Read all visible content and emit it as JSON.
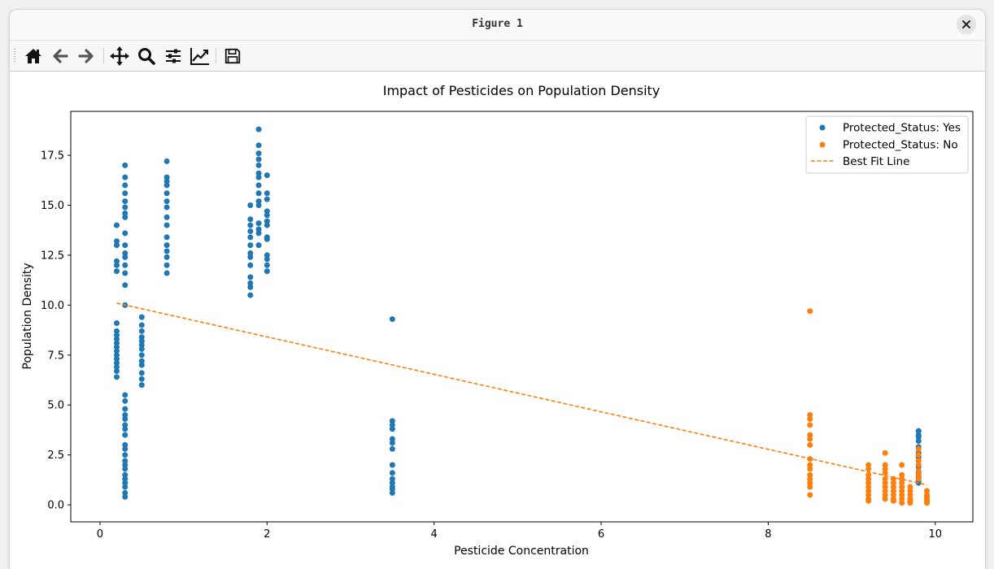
{
  "window": {
    "title": "Figure 1"
  },
  "toolbar": {
    "buttons": [
      {
        "name": "home-button",
        "icon": "home-icon"
      },
      {
        "name": "back-button",
        "icon": "arrow-left-icon"
      },
      {
        "name": "forward-button",
        "icon": "arrow-right-icon"
      },
      {
        "name": "pan-button",
        "icon": "move-icon"
      },
      {
        "name": "zoom-button",
        "icon": "magnifier-icon"
      },
      {
        "name": "configure-subplots-button",
        "icon": "sliders-icon"
      },
      {
        "name": "edit-axes-button",
        "icon": "line-chart-icon"
      },
      {
        "name": "save-button",
        "icon": "floppy-disk-icon"
      }
    ]
  },
  "chart_data": {
    "type": "scatter",
    "title": "Impact of Pesticides on Population Density",
    "xlabel": "Pesticide Concentration",
    "ylabel": "Population Density",
    "xlim": [
      -0.35,
      10.45
    ],
    "ylim": [
      -0.85,
      19.7
    ],
    "xticks": [
      0,
      2,
      4,
      6,
      8,
      10
    ],
    "xtick_labels": [
      "0",
      "2",
      "4",
      "6",
      "8",
      "10"
    ],
    "yticks": [
      0,
      2.5,
      5,
      7.5,
      10,
      12.5,
      15,
      17.5
    ],
    "ytick_labels": [
      "0.0",
      "2.5",
      "5.0",
      "7.5",
      "10.0",
      "12.5",
      "15.0",
      "17.5"
    ],
    "grid": false,
    "legend_position": "top-right",
    "series": [
      {
        "name": "Protected_Status: Yes",
        "kind": "scatter",
        "color": "#1f77b4",
        "points": [
          [
            0.2,
            14.0
          ],
          [
            0.2,
            13.2
          ],
          [
            0.2,
            13.0
          ],
          [
            0.2,
            12.2
          ],
          [
            0.2,
            12.0
          ],
          [
            0.2,
            11.7
          ],
          [
            0.2,
            9.1
          ],
          [
            0.2,
            8.7
          ],
          [
            0.2,
            8.5
          ],
          [
            0.2,
            8.3
          ],
          [
            0.2,
            8.1
          ],
          [
            0.2,
            7.9
          ],
          [
            0.2,
            7.7
          ],
          [
            0.2,
            7.5
          ],
          [
            0.2,
            7.3
          ],
          [
            0.2,
            7.1
          ],
          [
            0.2,
            6.9
          ],
          [
            0.2,
            6.7
          ],
          [
            0.2,
            6.4
          ],
          [
            0.3,
            17.0
          ],
          [
            0.3,
            16.4
          ],
          [
            0.3,
            16.0
          ],
          [
            0.3,
            15.6
          ],
          [
            0.3,
            15.2
          ],
          [
            0.3,
            14.9
          ],
          [
            0.3,
            14.6
          ],
          [
            0.3,
            14.4
          ],
          [
            0.3,
            13.6
          ],
          [
            0.3,
            13.0
          ],
          [
            0.3,
            12.6
          ],
          [
            0.3,
            12.4
          ],
          [
            0.3,
            12.0
          ],
          [
            0.3,
            11.6
          ],
          [
            0.3,
            11.0
          ],
          [
            0.3,
            10.0
          ],
          [
            0.3,
            5.5
          ],
          [
            0.3,
            5.2
          ],
          [
            0.3,
            4.8
          ],
          [
            0.3,
            4.5
          ],
          [
            0.3,
            4.3
          ],
          [
            0.3,
            4.0
          ],
          [
            0.3,
            3.8
          ],
          [
            0.3,
            3.5
          ],
          [
            0.3,
            3.0
          ],
          [
            0.3,
            2.8
          ],
          [
            0.3,
            2.5
          ],
          [
            0.3,
            2.2
          ],
          [
            0.3,
            2.0
          ],
          [
            0.3,
            1.8
          ],
          [
            0.3,
            1.5
          ],
          [
            0.3,
            1.3
          ],
          [
            0.3,
            1.1
          ],
          [
            0.3,
            0.9
          ],
          [
            0.3,
            0.6
          ],
          [
            0.3,
            0.4
          ],
          [
            0.5,
            9.4
          ],
          [
            0.5,
            9.0
          ],
          [
            0.5,
            8.7
          ],
          [
            0.5,
            8.4
          ],
          [
            0.5,
            8.2
          ],
          [
            0.5,
            8.0
          ],
          [
            0.5,
            7.8
          ],
          [
            0.5,
            7.5
          ],
          [
            0.5,
            7.2
          ],
          [
            0.5,
            7.0
          ],
          [
            0.5,
            6.6
          ],
          [
            0.5,
            6.3
          ],
          [
            0.5,
            6.0
          ],
          [
            0.8,
            17.2
          ],
          [
            0.8,
            16.4
          ],
          [
            0.8,
            16.2
          ],
          [
            0.8,
            16.0
          ],
          [
            0.8,
            15.6
          ],
          [
            0.8,
            15.2
          ],
          [
            0.8,
            14.9
          ],
          [
            0.8,
            14.4
          ],
          [
            0.8,
            14.0
          ],
          [
            0.8,
            13.4
          ],
          [
            0.8,
            13.0
          ],
          [
            0.8,
            12.7
          ],
          [
            0.8,
            12.4
          ],
          [
            0.8,
            12.0
          ],
          [
            0.8,
            11.6
          ],
          [
            1.8,
            15.0
          ],
          [
            1.8,
            14.3
          ],
          [
            1.8,
            14.0
          ],
          [
            1.8,
            13.7
          ],
          [
            1.8,
            13.4
          ],
          [
            1.8,
            13.0
          ],
          [
            1.8,
            12.6
          ],
          [
            1.8,
            12.4
          ],
          [
            1.8,
            12.0
          ],
          [
            1.8,
            11.4
          ],
          [
            1.8,
            11.1
          ],
          [
            1.8,
            10.9
          ],
          [
            1.8,
            10.5
          ],
          [
            1.9,
            18.8
          ],
          [
            1.9,
            18.0
          ],
          [
            1.9,
            17.6
          ],
          [
            1.9,
            17.3
          ],
          [
            1.9,
            17.0
          ],
          [
            1.9,
            16.6
          ],
          [
            1.9,
            16.4
          ],
          [
            1.9,
            16.0
          ],
          [
            1.9,
            15.6
          ],
          [
            1.9,
            15.2
          ],
          [
            1.9,
            15.0
          ],
          [
            1.9,
            14.1
          ],
          [
            1.9,
            13.8
          ],
          [
            1.9,
            13.6
          ],
          [
            1.9,
            13.0
          ],
          [
            2.0,
            16.5
          ],
          [
            2.0,
            15.6
          ],
          [
            2.0,
            15.3
          ],
          [
            2.0,
            14.7
          ],
          [
            2.0,
            14.5
          ],
          [
            2.0,
            14.2
          ],
          [
            2.0,
            14.0
          ],
          [
            2.0,
            13.4
          ],
          [
            2.0,
            13.3
          ],
          [
            2.0,
            12.5
          ],
          [
            2.0,
            12.3
          ],
          [
            2.0,
            12.0
          ],
          [
            2.0,
            11.7
          ],
          [
            3.5,
            9.3
          ],
          [
            3.5,
            4.2
          ],
          [
            3.5,
            4.0
          ],
          [
            3.5,
            3.8
          ],
          [
            3.5,
            3.3
          ],
          [
            3.5,
            3.1
          ],
          [
            3.5,
            2.8
          ],
          [
            3.5,
            2.0
          ],
          [
            3.5,
            1.6
          ],
          [
            3.5,
            1.3
          ],
          [
            3.5,
            1.1
          ],
          [
            3.5,
            0.9
          ],
          [
            3.5,
            0.8
          ],
          [
            3.5,
            0.6
          ],
          [
            9.8,
            3.7
          ],
          [
            9.8,
            3.5
          ],
          [
            9.8,
            3.4
          ],
          [
            9.8,
            3.2
          ],
          [
            9.8,
            2.9
          ],
          [
            9.8,
            2.6
          ],
          [
            9.8,
            2.4
          ],
          [
            9.8,
            2.2
          ],
          [
            9.8,
            1.9
          ],
          [
            9.8,
            1.6
          ],
          [
            9.8,
            1.4
          ],
          [
            9.8,
            1.2
          ],
          [
            9.8,
            1.1
          ]
        ]
      },
      {
        "name": "Protected_Status: No",
        "kind": "scatter",
        "color": "#ff7f0e",
        "points": [
          [
            8.5,
            9.7
          ],
          [
            8.5,
            4.5
          ],
          [
            8.5,
            4.3
          ],
          [
            8.5,
            4.0
          ],
          [
            8.5,
            3.5
          ],
          [
            8.5,
            3.3
          ],
          [
            8.5,
            3.0
          ],
          [
            8.5,
            2.3
          ],
          [
            8.5,
            2.0
          ],
          [
            8.5,
            1.8
          ],
          [
            8.5,
            1.5
          ],
          [
            8.5,
            1.3
          ],
          [
            8.5,
            1.1
          ],
          [
            8.5,
            0.9
          ],
          [
            8.5,
            0.5
          ],
          [
            9.2,
            2.0
          ],
          [
            9.2,
            1.8
          ],
          [
            9.2,
            1.5
          ],
          [
            9.2,
            1.3
          ],
          [
            9.2,
            1.1
          ],
          [
            9.2,
            0.9
          ],
          [
            9.2,
            0.7
          ],
          [
            9.2,
            0.5
          ],
          [
            9.2,
            0.3
          ],
          [
            9.2,
            0.2
          ],
          [
            9.4,
            2.6
          ],
          [
            9.4,
            2.0
          ],
          [
            9.4,
            1.8
          ],
          [
            9.4,
            1.6
          ],
          [
            9.4,
            1.3
          ],
          [
            9.4,
            1.1
          ],
          [
            9.4,
            0.9
          ],
          [
            9.4,
            0.7
          ],
          [
            9.4,
            0.5
          ],
          [
            9.4,
            0.3
          ],
          [
            9.5,
            1.3
          ],
          [
            9.5,
            1.1
          ],
          [
            9.5,
            0.9
          ],
          [
            9.5,
            0.7
          ],
          [
            9.5,
            0.5
          ],
          [
            9.5,
            0.3
          ],
          [
            9.5,
            0.2
          ],
          [
            9.6,
            2.0
          ],
          [
            9.6,
            1.5
          ],
          [
            9.6,
            1.3
          ],
          [
            9.6,
            1.1
          ],
          [
            9.6,
            0.9
          ],
          [
            9.6,
            0.7
          ],
          [
            9.6,
            0.5
          ],
          [
            9.6,
            0.3
          ],
          [
            9.6,
            0.1
          ],
          [
            9.7,
            0.9
          ],
          [
            9.7,
            0.7
          ],
          [
            9.7,
            0.5
          ],
          [
            9.7,
            0.3
          ],
          [
            9.7,
            0.2
          ],
          [
            9.7,
            0.1
          ],
          [
            9.8,
            2.8
          ],
          [
            9.8,
            2.5
          ],
          [
            9.8,
            2.2
          ],
          [
            9.8,
            2.0
          ],
          [
            9.8,
            1.7
          ],
          [
            9.8,
            1.5
          ],
          [
            9.8,
            1.3
          ],
          [
            9.9,
            0.7
          ],
          [
            9.9,
            0.5
          ],
          [
            9.9,
            0.4
          ],
          [
            9.9,
            0.3
          ],
          [
            9.9,
            0.2
          ],
          [
            9.9,
            0.1
          ]
        ]
      },
      {
        "name": "Best Fit Line",
        "kind": "line",
        "style": "dashed",
        "color": "#ff7f0e",
        "x": [
          0.2,
          9.9
        ],
        "y": [
          10.1,
          1.0
        ]
      }
    ]
  }
}
